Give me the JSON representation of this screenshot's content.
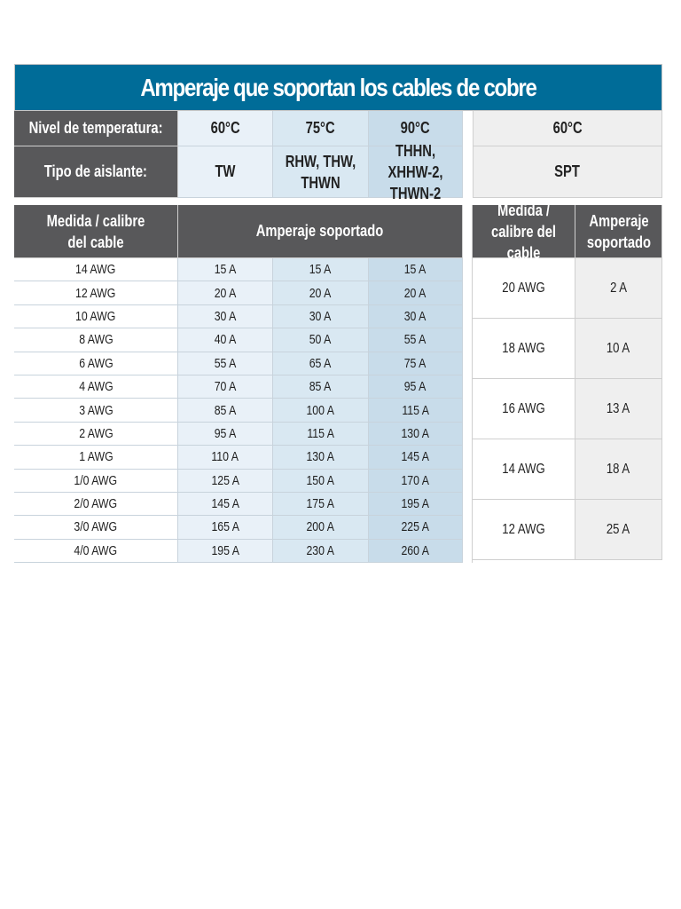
{
  "title": "Amperaje que soportan los cables de cobre",
  "temp_row": {
    "label": "Nivel de temperatura:",
    "temps": [
      "60°C",
      "75°C",
      "90°C"
    ],
    "spt_temp": "60°C"
  },
  "insulation_row": {
    "label": "Tipo de aislante:",
    "types": [
      "TW",
      "RHW, THW, THWN",
      "THHN, XHHW-2, THWN-2"
    ],
    "spt_type": "SPT"
  },
  "main_table": {
    "col_gauge": "Medida / calibre del cable",
    "col_amps": "Amperaje soportado",
    "rows": [
      {
        "gauge": "14 AWG",
        "a60": "15 A",
        "a75": "15 A",
        "a90": "15 A"
      },
      {
        "gauge": "12 AWG",
        "a60": "20 A",
        "a75": "20 A",
        "a90": "20 A"
      },
      {
        "gauge": "10 AWG",
        "a60": "30 A",
        "a75": "30 A",
        "a90": "30 A"
      },
      {
        "gauge": "8 AWG",
        "a60": "40 A",
        "a75": "50 A",
        "a90": "55 A"
      },
      {
        "gauge": "6 AWG",
        "a60": "55 A",
        "a75": "65 A",
        "a90": "75 A"
      },
      {
        "gauge": "4 AWG",
        "a60": "70 A",
        "a75": "85 A",
        "a90": "95 A"
      },
      {
        "gauge": "3 AWG",
        "a60": "85 A",
        "a75": "100 A",
        "a90": "115 A"
      },
      {
        "gauge": "2 AWG",
        "a60": "95 A",
        "a75": "115 A",
        "a90": "130 A"
      },
      {
        "gauge": "1 AWG",
        "a60": "110 A",
        "a75": "130 A",
        "a90": "145 A"
      },
      {
        "gauge": "1/0 AWG",
        "a60": "125 A",
        "a75": "150 A",
        "a90": "170 A"
      },
      {
        "gauge": "2/0 AWG",
        "a60": "145 A",
        "a75": "175 A",
        "a90": "195 A"
      },
      {
        "gauge": "3/0 AWG",
        "a60": "165 A",
        "a75": "200 A",
        "a90": "225 A"
      },
      {
        "gauge": "4/0 AWG",
        "a60": "195 A",
        "a75": "230 A",
        "a90": "260 A"
      }
    ]
  },
  "spt_table": {
    "col_gauge": "Medida / calibre del cable",
    "col_amps": "Amperaje soportado",
    "rows": [
      {
        "gauge": "20 AWG",
        "amps": "2 A"
      },
      {
        "gauge": "18 AWG",
        "amps": "10 A"
      },
      {
        "gauge": "16 AWG",
        "amps": "13 A"
      },
      {
        "gauge": "14 AWG",
        "amps": "18 A"
      },
      {
        "gauge": "12 AWG",
        "amps": "25 A"
      }
    ]
  },
  "colors": {
    "title_bg": "#006c98",
    "header_bg": "#58585a",
    "col60_bg": "#e9f1f8",
    "col75_bg": "#d9e8f2",
    "col90_bg": "#c8dcea"
  }
}
